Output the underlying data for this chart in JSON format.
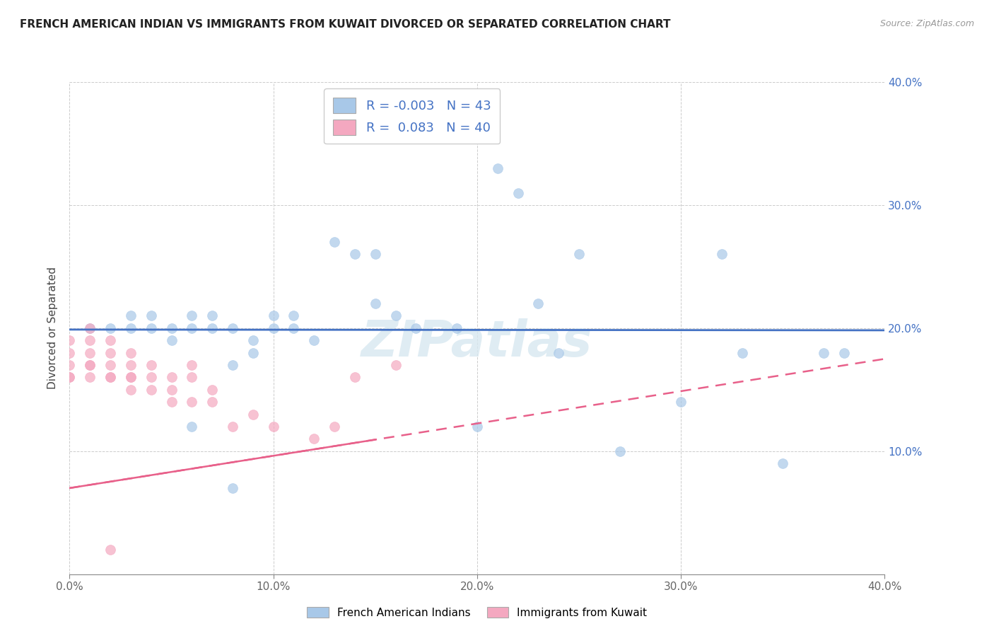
{
  "title": "FRENCH AMERICAN INDIAN VS IMMIGRANTS FROM KUWAIT DIVORCED OR SEPARATED CORRELATION CHART",
  "source": "Source: ZipAtlas.com",
  "ylabel": "Divorced or Separated",
  "xlim": [
    0.0,
    0.4
  ],
  "ylim": [
    0.0,
    0.4
  ],
  "xtick_positions": [
    0.0,
    0.1,
    0.2,
    0.3,
    0.4
  ],
  "xtick_labels": [
    "0.0%",
    "10.0%",
    "20.0%",
    "30.0%",
    "40.0%"
  ],
  "ytick_positions": [
    0.1,
    0.2,
    0.3,
    0.4
  ],
  "ytick_labels": [
    "10.0%",
    "20.0%",
    "30.0%",
    "40.0%"
  ],
  "legend_label1": "French American Indians",
  "legend_label2": "Immigrants from Kuwait",
  "R1": -0.003,
  "N1": 43,
  "R2": 0.083,
  "N2": 40,
  "blue_color": "#a8c8e8",
  "pink_color": "#f4a8c0",
  "blue_line_color": "#4472C4",
  "pink_line_color": "#e8608a",
  "watermark": "ZIPatlas",
  "blue_scatter_x": [
    0.01,
    0.02,
    0.03,
    0.03,
    0.04,
    0.04,
    0.05,
    0.05,
    0.06,
    0.06,
    0.07,
    0.07,
    0.08,
    0.08,
    0.09,
    0.09,
    0.1,
    0.1,
    0.11,
    0.11,
    0.12,
    0.13,
    0.14,
    0.15,
    0.15,
    0.16,
    0.17,
    0.19,
    0.21,
    0.22,
    0.23,
    0.24,
    0.25,
    0.27,
    0.3,
    0.32,
    0.33,
    0.35,
    0.37,
    0.38,
    0.06,
    0.08,
    0.2
  ],
  "blue_scatter_y": [
    0.2,
    0.2,
    0.21,
    0.2,
    0.2,
    0.21,
    0.2,
    0.19,
    0.21,
    0.2,
    0.2,
    0.21,
    0.2,
    0.17,
    0.19,
    0.18,
    0.21,
    0.2,
    0.21,
    0.2,
    0.19,
    0.27,
    0.26,
    0.26,
    0.22,
    0.21,
    0.2,
    0.2,
    0.33,
    0.31,
    0.22,
    0.18,
    0.26,
    0.1,
    0.14,
    0.26,
    0.18,
    0.09,
    0.18,
    0.18,
    0.12,
    0.07,
    0.12
  ],
  "pink_scatter_x": [
    0.0,
    0.0,
    0.0,
    0.0,
    0.0,
    0.01,
    0.01,
    0.01,
    0.01,
    0.01,
    0.01,
    0.02,
    0.02,
    0.02,
    0.02,
    0.02,
    0.03,
    0.03,
    0.03,
    0.03,
    0.03,
    0.04,
    0.04,
    0.04,
    0.05,
    0.05,
    0.05,
    0.06,
    0.06,
    0.06,
    0.07,
    0.07,
    0.08,
    0.09,
    0.1,
    0.12,
    0.13,
    0.14,
    0.16,
    0.02
  ],
  "pink_scatter_y": [
    0.16,
    0.17,
    0.18,
    0.16,
    0.19,
    0.17,
    0.16,
    0.18,
    0.17,
    0.19,
    0.2,
    0.16,
    0.17,
    0.18,
    0.16,
    0.19,
    0.15,
    0.16,
    0.17,
    0.18,
    0.16,
    0.15,
    0.16,
    0.17,
    0.14,
    0.15,
    0.16,
    0.17,
    0.16,
    0.14,
    0.15,
    0.14,
    0.12,
    0.13,
    0.12,
    0.11,
    0.12,
    0.16,
    0.17,
    0.02
  ]
}
